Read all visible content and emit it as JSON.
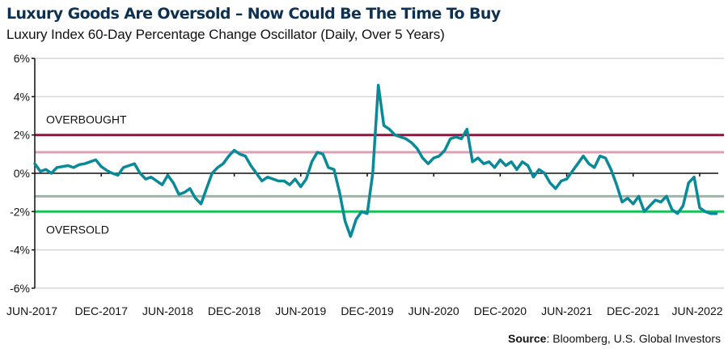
{
  "title": "Luxury Goods Are Oversold – Now Could Be The Time To Buy",
  "subtitle": "Luxury Index 60-Day Percentage Change Oscillator (Daily, Over 5 Years)",
  "source": {
    "label": "Source",
    "text": ": Bloomberg, U.S. Global Investors"
  },
  "colors": {
    "series": "#0a8a98",
    "overbought": "#9b0f3f",
    "overbought_band": "#dca0b4",
    "oversold": "#19c15b",
    "oversold_band": "#9ab8a8",
    "grid": "#d6d6d6",
    "title": "#0e3151"
  },
  "chart_data": {
    "type": "line",
    "title": "Luxury Goods Are Oversold – Now Could Be The Time To Buy",
    "subtitle": "Luxury Index 60-Day Percentage Change Oscillator (Daily, Over 5 Years)",
    "xlabel": "",
    "ylabel": "",
    "ylim": [
      -6,
      6
    ],
    "y_ticks": [
      6,
      4,
      2,
      0,
      -2,
      -4,
      -6
    ],
    "y_tick_labels": [
      "6%",
      "4%",
      "2%",
      "0%",
      "-2%",
      "-4%",
      "-6%"
    ],
    "x_tick_labels": [
      "JUN-2017",
      "DEC-2017",
      "JUN-2018",
      "DEC-2018",
      "JUN-2019",
      "DEC-2019",
      "JUN-2020",
      "DEC-2020",
      "JUN-2021",
      "DEC-2021",
      "JUN-2022"
    ],
    "x_tick_months": [
      0,
      6,
      12,
      18,
      24,
      30,
      36,
      42,
      48,
      54,
      60
    ],
    "x_unit": "months since Jun-2017",
    "grid": true,
    "reference_lines": [
      {
        "name": "Overbought",
        "value": 2.0,
        "label": "OVERBOUGHT"
      },
      {
        "name": "Overbought band",
        "value": 1.1,
        "label": ""
      },
      {
        "name": "Oversold band",
        "value": -1.2,
        "label": ""
      },
      {
        "name": "Oversold",
        "value": -2.0,
        "label": "OVERSOLD"
      }
    ],
    "series": [
      {
        "name": "Luxury Index 60-Day % Change",
        "x": [
          0,
          0.5,
          1,
          1.5,
          2,
          2.5,
          3,
          3.5,
          4,
          4.5,
          5,
          5.5,
          6,
          6.5,
          7,
          7.5,
          8,
          8.5,
          9,
          9.5,
          10,
          10.5,
          11,
          11.5,
          12,
          12.5,
          13,
          13.5,
          14,
          14.5,
          15,
          15.5,
          16,
          16.5,
          17,
          17.5,
          18,
          18.5,
          19,
          19.5,
          20,
          20.5,
          21,
          21.5,
          22,
          22.5,
          23,
          23.5,
          24,
          24.5,
          25,
          25.5,
          26,
          26.5,
          27,
          27.5,
          28,
          28.5,
          29,
          29.5,
          30,
          30.5,
          31,
          31.5,
          32,
          32.5,
          33,
          33.5,
          34,
          34.5,
          35,
          35.5,
          36,
          36.5,
          37,
          37.5,
          38,
          38.5,
          39,
          39.5,
          40,
          40.5,
          41,
          41.5,
          42,
          42.5,
          43,
          43.5,
          44,
          44.5,
          45,
          45.5,
          46,
          46.5,
          47,
          47.5,
          48,
          48.5,
          49,
          49.5,
          50,
          50.5,
          51,
          51.5,
          52,
          52.5,
          53,
          53.5,
          54,
          54.5,
          55,
          55.5,
          56,
          56.5,
          57,
          57.5,
          58,
          58.5,
          59,
          59.5,
          60,
          60.5,
          61,
          61.5
        ],
        "values": [
          0.5,
          0.1,
          0.2,
          0.0,
          0.3,
          0.35,
          0.4,
          0.3,
          0.45,
          0.5,
          0.6,
          0.7,
          0.35,
          0.15,
          0.0,
          -0.1,
          0.3,
          0.4,
          0.5,
          0.0,
          -0.3,
          -0.2,
          -0.4,
          -0.6,
          -0.1,
          -0.5,
          -1.1,
          -1.0,
          -0.8,
          -1.3,
          -1.6,
          -0.8,
          0.0,
          0.3,
          0.5,
          0.9,
          1.2,
          1.0,
          0.9,
          0.4,
          0.0,
          -0.4,
          -0.2,
          -0.3,
          -0.4,
          -0.4,
          -0.6,
          -0.3,
          -0.7,
          -0.3,
          0.6,
          1.1,
          1.0,
          0.3,
          0.2,
          -1.0,
          -2.5,
          -3.3,
          -2.4,
          -2.0,
          -2.1,
          0.0,
          4.6,
          2.5,
          2.3,
          2.0,
          1.9,
          1.8,
          1.6,
          1.3,
          0.8,
          0.5,
          0.8,
          0.9,
          1.2,
          1.8,
          1.9,
          1.8,
          2.3,
          0.6,
          0.8,
          0.5,
          0.6,
          0.3,
          0.7,
          0.4,
          0.6,
          0.2,
          0.6,
          0.4,
          -0.2,
          0.2,
          0.0,
          -0.5,
          -0.8,
          -0.4,
          -0.3,
          0.1,
          0.5,
          0.9,
          0.5,
          0.3,
          0.9,
          0.8,
          0.2,
          -0.6,
          -1.5,
          -1.3,
          -1.6,
          -1.2,
          -2.0,
          -1.7,
          -1.4,
          -1.5,
          -1.2,
          -1.9,
          -2.1,
          -1.7,
          -0.5,
          -0.2,
          -1.8,
          -2.0,
          -2.1,
          -2.1
        ]
      }
    ]
  }
}
